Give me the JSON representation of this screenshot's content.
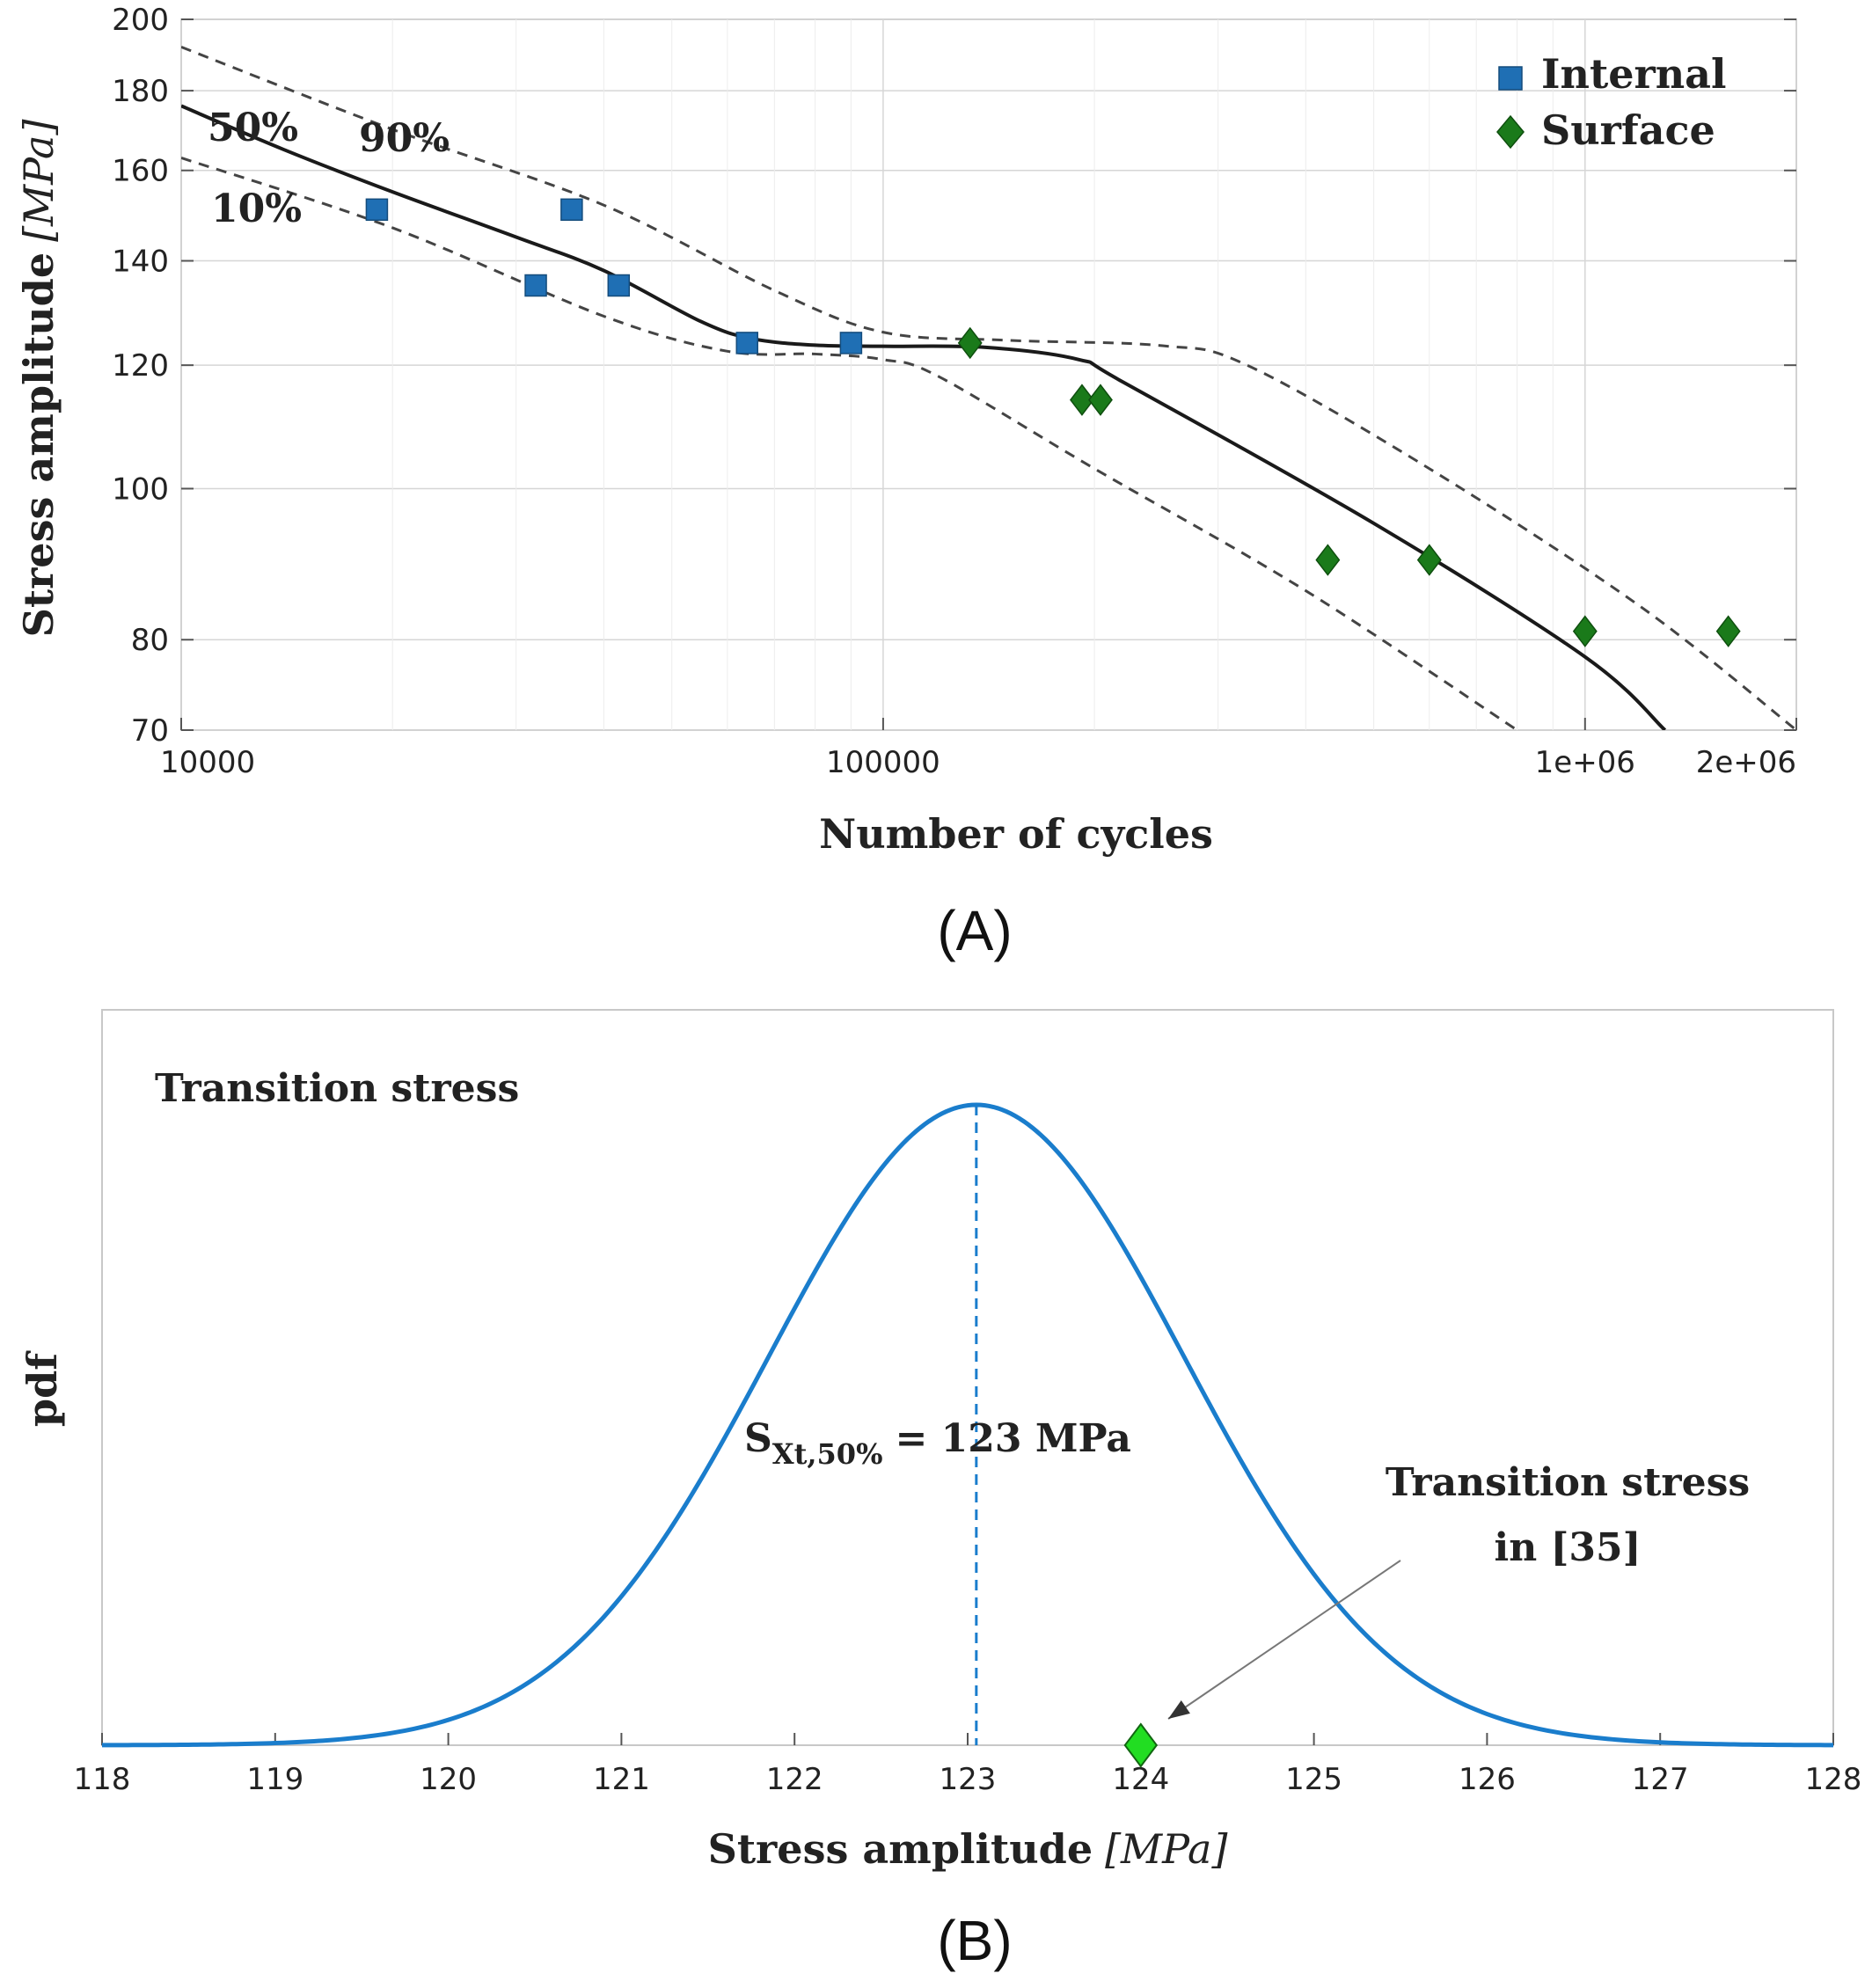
{
  "chart_data": [
    {
      "type": "scatter",
      "panel_label": "(A)",
      "xlabel": "Number of cycles",
      "ylabel": "Stress amplitude [MPa]",
      "ylabel_plain": "Stress amplitude",
      "ylabel_unit": "[MPa]",
      "x_scale": "log",
      "y_scale": "log",
      "xlim": [
        10000,
        2000000
      ],
      "ylim": [
        70,
        200
      ],
      "x_ticks": [
        10000,
        100000,
        1000000,
        2000000
      ],
      "x_tick_labels": [
        "10000",
        "100000",
        "1e+06",
        "2e+06"
      ],
      "y_ticks": [
        70,
        80,
        100,
        120,
        140,
        160,
        180,
        200
      ],
      "y_tick_labels": [
        "70",
        "80",
        "100",
        "120",
        "140",
        "160",
        "180",
        "200"
      ],
      "grid": true,
      "legend_position": "top-right",
      "series": [
        {
          "name": "Internal",
          "marker": "square",
          "color": "#1f6fb4",
          "points": [
            [
              19000,
              151
            ],
            [
              32000,
              135
            ],
            [
              36000,
              151
            ],
            [
              42000,
              135
            ],
            [
              64000,
              124
            ],
            [
              90000,
              124
            ]
          ]
        },
        {
          "name": "Surface",
          "marker": "diamond",
          "color": "#1a7a1a",
          "points": [
            [
              133000,
              124
            ],
            [
              192000,
              114
            ],
            [
              204000,
              114
            ],
            [
              430000,
              90
            ],
            [
              600000,
              90
            ],
            [
              1000000,
              81
            ],
            [
              1600000,
              81
            ]
          ]
        }
      ],
      "curves": [
        {
          "label": "50%",
          "style": "solid",
          "points": [
            [
              10000,
              176
            ],
            [
              14000,
              165
            ],
            [
              20000,
              155
            ],
            [
              30000,
              145
            ],
            [
              40000,
              138
            ],
            [
              55000,
              128
            ],
            [
              65000,
              124.8
            ],
            [
              80000,
              123.6
            ],
            [
              100000,
              123.4
            ],
            [
              140000,
              123.2
            ],
            [
              190000,
              121
            ],
            [
              220000,
              117
            ],
            [
              500000,
              95
            ],
            [
              1000000,
              78
            ],
            [
              1300000,
              70
            ]
          ]
        },
        {
          "label": "90%",
          "style": "dashed",
          "points": [
            [
              10000,
              192
            ],
            [
              20000,
              170
            ],
            [
              40000,
              152
            ],
            [
              70000,
              134
            ],
            [
              100000,
              126
            ],
            [
              150000,
              124.5
            ],
            [
              250000,
              123.5
            ],
            [
              330000,
              120
            ],
            [
              600000,
              103
            ],
            [
              1200000,
              84
            ],
            [
              2000000,
              70
            ]
          ]
        },
        {
          "label": "10%",
          "style": "dashed",
          "points": [
            [
              10000,
              163
            ],
            [
              20000,
              147
            ],
            [
              40000,
              129
            ],
            [
              60000,
              122.5
            ],
            [
              80000,
              122
            ],
            [
              100000,
              121
            ],
            [
              120000,
              118
            ],
            [
              200000,
              103
            ],
            [
              400000,
              86
            ],
            [
              800000,
              70
            ]
          ]
        }
      ]
    },
    {
      "type": "line",
      "panel_label": "(B)",
      "title": "Transition stress",
      "xlabel": "Stress amplitude [MPa]",
      "xlabel_plain": "Stress amplitude",
      "xlabel_unit": "[MPa]",
      "ylabel": "pdf",
      "xlim": [
        118,
        128
      ],
      "x_ticks": [
        118,
        119,
        120,
        121,
        122,
        123,
        124,
        125,
        126,
        127,
        128
      ],
      "x_tick_labels": [
        "118",
        "119",
        "120",
        "121",
        "122",
        "123",
        "124",
        "125",
        "126",
        "127",
        "128"
      ],
      "distribution": {
        "mean": 123.05,
        "std": 1.2
      },
      "median_label": "= 123 MPa",
      "median_symbol": "S",
      "median_subscript": "Xt,50%",
      "reference_point": {
        "x": 124,
        "y": 0,
        "marker": "diamond",
        "color": "#22dd22"
      },
      "reference_annotation_lines": [
        "Transition stress",
        "in [35]"
      ],
      "line_color": "#1a7dcc",
      "grid": false
    }
  ]
}
